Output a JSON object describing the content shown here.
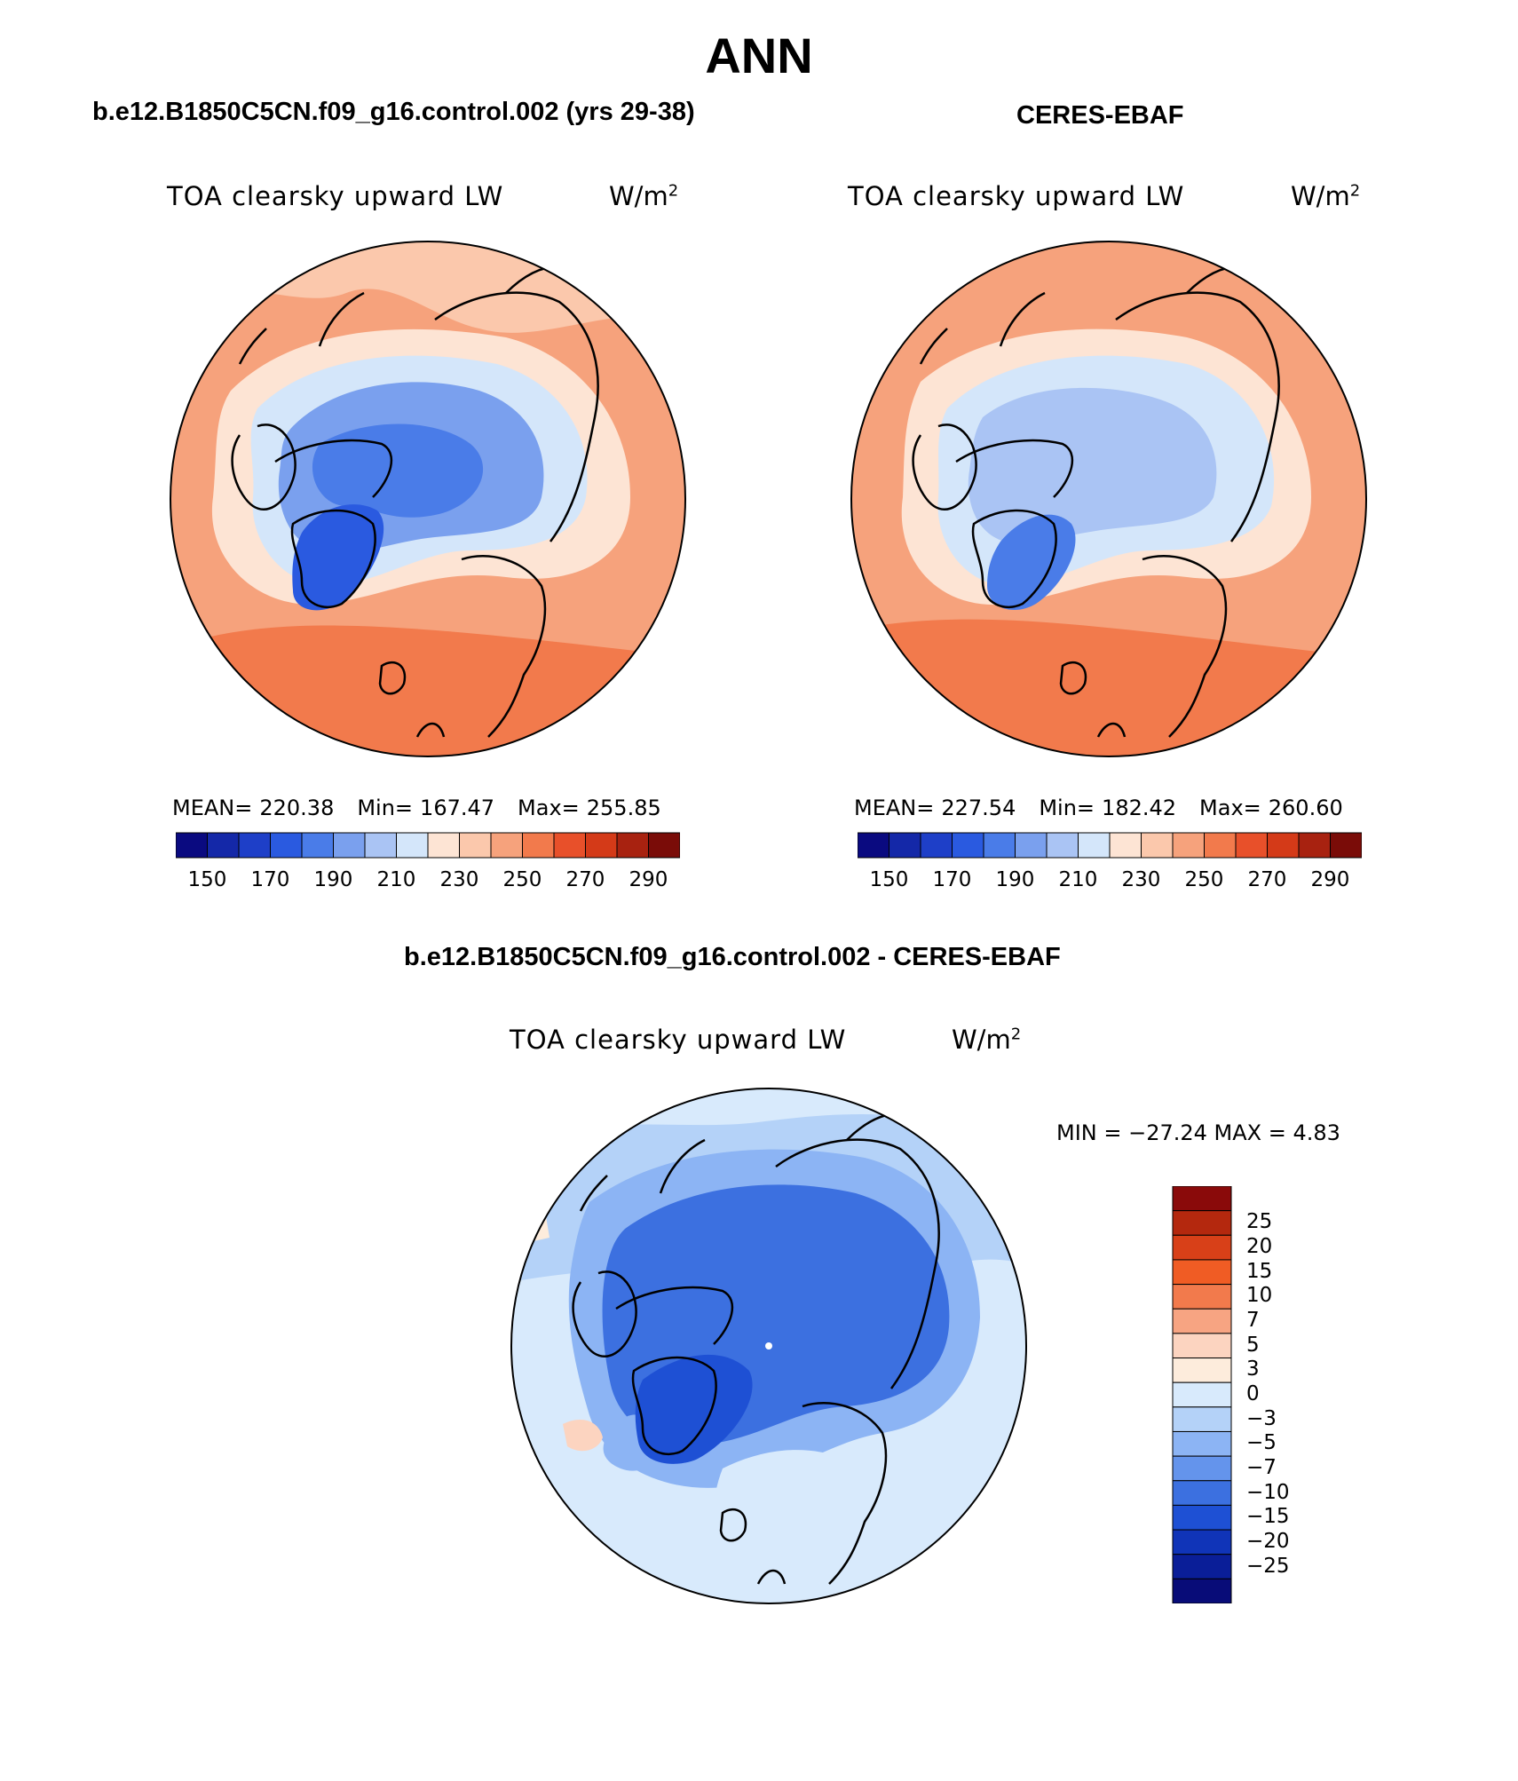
{
  "title": "ANN",
  "panels": [
    {
      "title": "b.e12.B1850C5CN.f09_g16.control.002 (yrs 29-38)",
      "variable": "TOA clearsky upward LW",
      "units": "W/m",
      "units_sup": "2",
      "stats": {
        "mean_label": "MEAN=",
        "mean": "220.38",
        "min_label": "Min=",
        "min": "167.47",
        "max_label": "Max=",
        "max": "255.85"
      }
    },
    {
      "title": "CERES-EBAF",
      "variable": "TOA clearsky upward LW",
      "units": "W/m",
      "units_sup": "2",
      "stats": {
        "mean_label": "MEAN=",
        "mean": "227.54",
        "min_label": "Min=",
        "min": "182.42",
        "max_label": "Max=",
        "max": "260.60"
      }
    }
  ],
  "diff_panel": {
    "title": "b.e12.B1850C5CN.f09_g16.control.002 - CERES-EBAF",
    "variable": "TOA clearsky upward LW",
    "units": "W/m",
    "units_sup": "2",
    "minmax": "MIN = −27.24 MAX =    4.83"
  },
  "colorbar_abs": {
    "colors": [
      "#0a0a80",
      "#1428a8",
      "#1e3fc8",
      "#2a5ae0",
      "#4a7ce8",
      "#7aa0ee",
      "#aac4f4",
      "#d4e6fa",
      "#fde4d4",
      "#fbc8ac",
      "#f6a27c",
      "#f27a4c",
      "#e8502a",
      "#d43a18",
      "#a82210",
      "#7a0c08"
    ],
    "ticks": [
      "150",
      "170",
      "190",
      "210",
      "230",
      "250",
      "270",
      "290"
    ]
  },
  "colorbar_diff": {
    "colors_top_to_bottom": [
      "#8a0a0a",
      "#b4280e",
      "#d84018",
      "#f05c24",
      "#f27a4c",
      "#f7a482",
      "#fcd4c0",
      "#fdecdc",
      "#d8eafc",
      "#b4d2f8",
      "#8cb4f4",
      "#6494ec",
      "#3c70e0",
      "#1e50d4",
      "#1034b8",
      "#0a1e98",
      "#080c78"
    ],
    "labels": [
      "25",
      "20",
      "15",
      "10",
      "7",
      "5",
      "3",
      "0",
      "−3",
      "−5",
      "−7",
      "−10",
      "−15",
      "−20",
      "−25"
    ]
  }
}
